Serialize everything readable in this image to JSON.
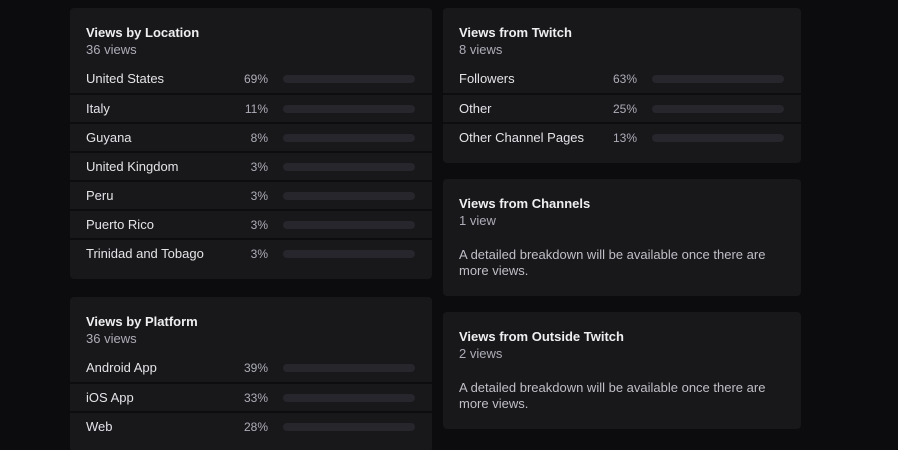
{
  "colors": {
    "page_background": "#0c0c0e",
    "panel_background": "#18181b",
    "row_separator": "#0d0d0f",
    "bar_track": "#26262c",
    "bar_fill_accent": "#a970ff",
    "title_text": "#efeff1",
    "muted_text": "#adadb8"
  },
  "panels": {
    "views_by_location": {
      "title": "Views by Location",
      "subtitle": "36 views",
      "rows": [
        {
          "label": "United States",
          "percent": 69,
          "percent_label": "69%"
        },
        {
          "label": "Italy",
          "percent": 11,
          "percent_label": "11%"
        },
        {
          "label": "Guyana",
          "percent": 8,
          "percent_label": "8%"
        },
        {
          "label": "United Kingdom",
          "percent": 3,
          "percent_label": "3%"
        },
        {
          "label": "Peru",
          "percent": 3,
          "percent_label": "3%"
        },
        {
          "label": "Puerto Rico",
          "percent": 3,
          "percent_label": "3%"
        },
        {
          "label": "Trinidad and Tobago",
          "percent": 3,
          "percent_label": "3%"
        }
      ]
    },
    "views_by_platform": {
      "title": "Views by Platform",
      "subtitle": "36 views",
      "rows": [
        {
          "label": "Android App",
          "percent": 39,
          "percent_label": "39%"
        },
        {
          "label": "iOS App",
          "percent": 33,
          "percent_label": "33%"
        },
        {
          "label": "Web",
          "percent": 28,
          "percent_label": "28%"
        }
      ]
    },
    "views_from_twitch": {
      "title": "Views from Twitch",
      "subtitle": "8 views",
      "rows": [
        {
          "label": "Followers",
          "percent": 63,
          "percent_label": "63%"
        },
        {
          "label": "Other",
          "percent": 25,
          "percent_label": "25%"
        },
        {
          "label": "Other Channel Pages",
          "percent": 13,
          "percent_label": "13%"
        }
      ]
    },
    "views_from_channels": {
      "title": "Views from Channels",
      "subtitle": "1 view",
      "message": "A detailed breakdown will be available once there are more views."
    },
    "views_from_outside_twitch": {
      "title": "Views from Outside Twitch",
      "subtitle": "2 views",
      "message": "A detailed breakdown will be available once there are more views."
    }
  },
  "chart_data": [
    {
      "type": "bar",
      "title": "Views by Location",
      "subtitle": "36 views",
      "categories": [
        "United States",
        "Italy",
        "Guyana",
        "United Kingdom",
        "Peru",
        "Puerto Rico",
        "Trinidad and Tobago"
      ],
      "values": [
        69,
        11,
        8,
        3,
        3,
        3,
        3
      ],
      "unit": "%",
      "xlim": [
        0,
        100
      ]
    },
    {
      "type": "bar",
      "title": "Views by Platform",
      "subtitle": "36 views",
      "categories": [
        "Android App",
        "iOS App",
        "Web"
      ],
      "values": [
        39,
        33,
        28
      ],
      "unit": "%",
      "xlim": [
        0,
        100
      ]
    },
    {
      "type": "bar",
      "title": "Views from Twitch",
      "subtitle": "8 views",
      "categories": [
        "Followers",
        "Other",
        "Other Channel Pages"
      ],
      "values": [
        63,
        25,
        13
      ],
      "unit": "%",
      "xlim": [
        0,
        100
      ]
    }
  ]
}
